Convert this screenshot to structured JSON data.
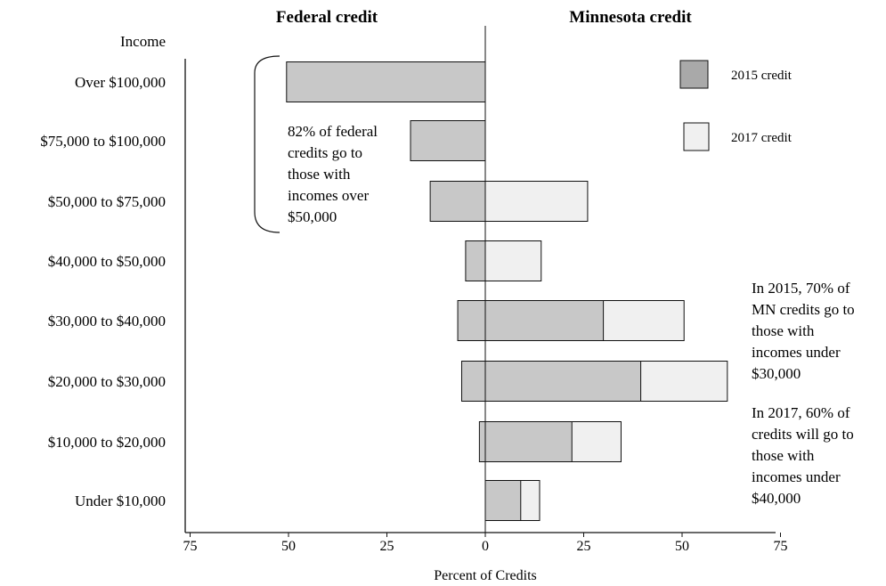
{
  "colors": {
    "federal_bar": "#c8c8c8",
    "credit_2015": "#c8c8c8",
    "credit_2017": "#f0f0f0",
    "legend_2015": "#a9a9a9",
    "legend_2017": "#f0f0f0",
    "line": "#111111",
    "text": "#111111",
    "background": "#ffffff"
  },
  "chart_data": {
    "type": "bar",
    "orientation": "horizontal",
    "titles": {
      "left": "Federal credit",
      "right": "Minnesota credit"
    },
    "category_label": "Income",
    "xlabel": "Percent of Credits",
    "xlim": [
      -75,
      75
    ],
    "xticks": [
      {
        "value": -75,
        "label": "75"
      },
      {
        "value": -50,
        "label": "50"
      },
      {
        "value": -25,
        "label": "25"
      },
      {
        "value": 0,
        "label": "0"
      },
      {
        "value": 25,
        "label": "25"
      },
      {
        "value": 50,
        "label": "50"
      },
      {
        "value": 75,
        "label": "75"
      }
    ],
    "categories": [
      "Over $100,000",
      "$75,000 to $100,000",
      "$50,000 to $75,000",
      "$40,000 to $50,000",
      "$30,000 to $40,000",
      "$20,000 to $30,000",
      "$10,000 to $20,000",
      "Under $10,000"
    ],
    "federal_credit": [
      50.5,
      19.0,
      14.0,
      5.0,
      7.0,
      6.0,
      1.5,
      0.0
    ],
    "minnesota_2015_credit": [
      0,
      0,
      0,
      0,
      30.0,
      39.5,
      22.0,
      9.0
    ],
    "minnesota_2017_credit": [
      0,
      0,
      26.0,
      14.2,
      50.5,
      61.5,
      34.5,
      13.8
    ],
    "legend": [
      {
        "label": "2015 credit",
        "color": "#a9a9a9"
      },
      {
        "label": "2017 credit",
        "color": "#f0f0f0"
      }
    ],
    "annotations": {
      "federal_note": [
        "82% of federal",
        "credits go to",
        "those with",
        "incomes over",
        "$50,000"
      ],
      "minnesota_2015_note": [
        "In 2015, 70% of",
        "MN credits go to",
        "those with",
        "incomes under",
        "$30,000"
      ],
      "minnesota_2017_note": [
        "In 2017, 60% of",
        "credits will go to",
        "those with",
        "incomes under",
        "$40,000"
      ]
    }
  }
}
